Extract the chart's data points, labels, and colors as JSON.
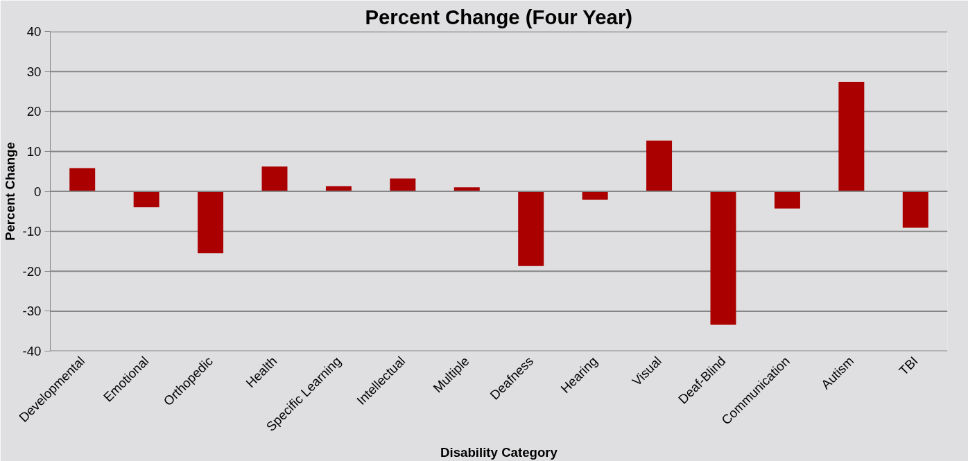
{
  "chart_data": {
    "type": "bar",
    "title": "Percent Change (Four Year)",
    "xlabel": "Disability Category",
    "ylabel": "Percent Change",
    "categories": [
      "Developmental",
      "Emotional",
      "Orthopedic",
      "Health",
      "Specific Learning",
      "Intellectual",
      "Multiple",
      "Deafness",
      "Hearing",
      "Visual",
      "Deaf-Blind",
      "Communication",
      "Autism",
      "TBI"
    ],
    "values": [
      5.8,
      -4.0,
      -15.5,
      6.2,
      1.3,
      3.2,
      1.0,
      -18.7,
      -2.1,
      12.7,
      -33.4,
      -4.3,
      27.4,
      -9.1
    ],
    "color": "#aa0000",
    "ylim": [
      -40,
      40
    ],
    "yticks": [
      -40,
      -30,
      -20,
      -10,
      0,
      10,
      20,
      30,
      40
    ],
    "grid": "y"
  }
}
